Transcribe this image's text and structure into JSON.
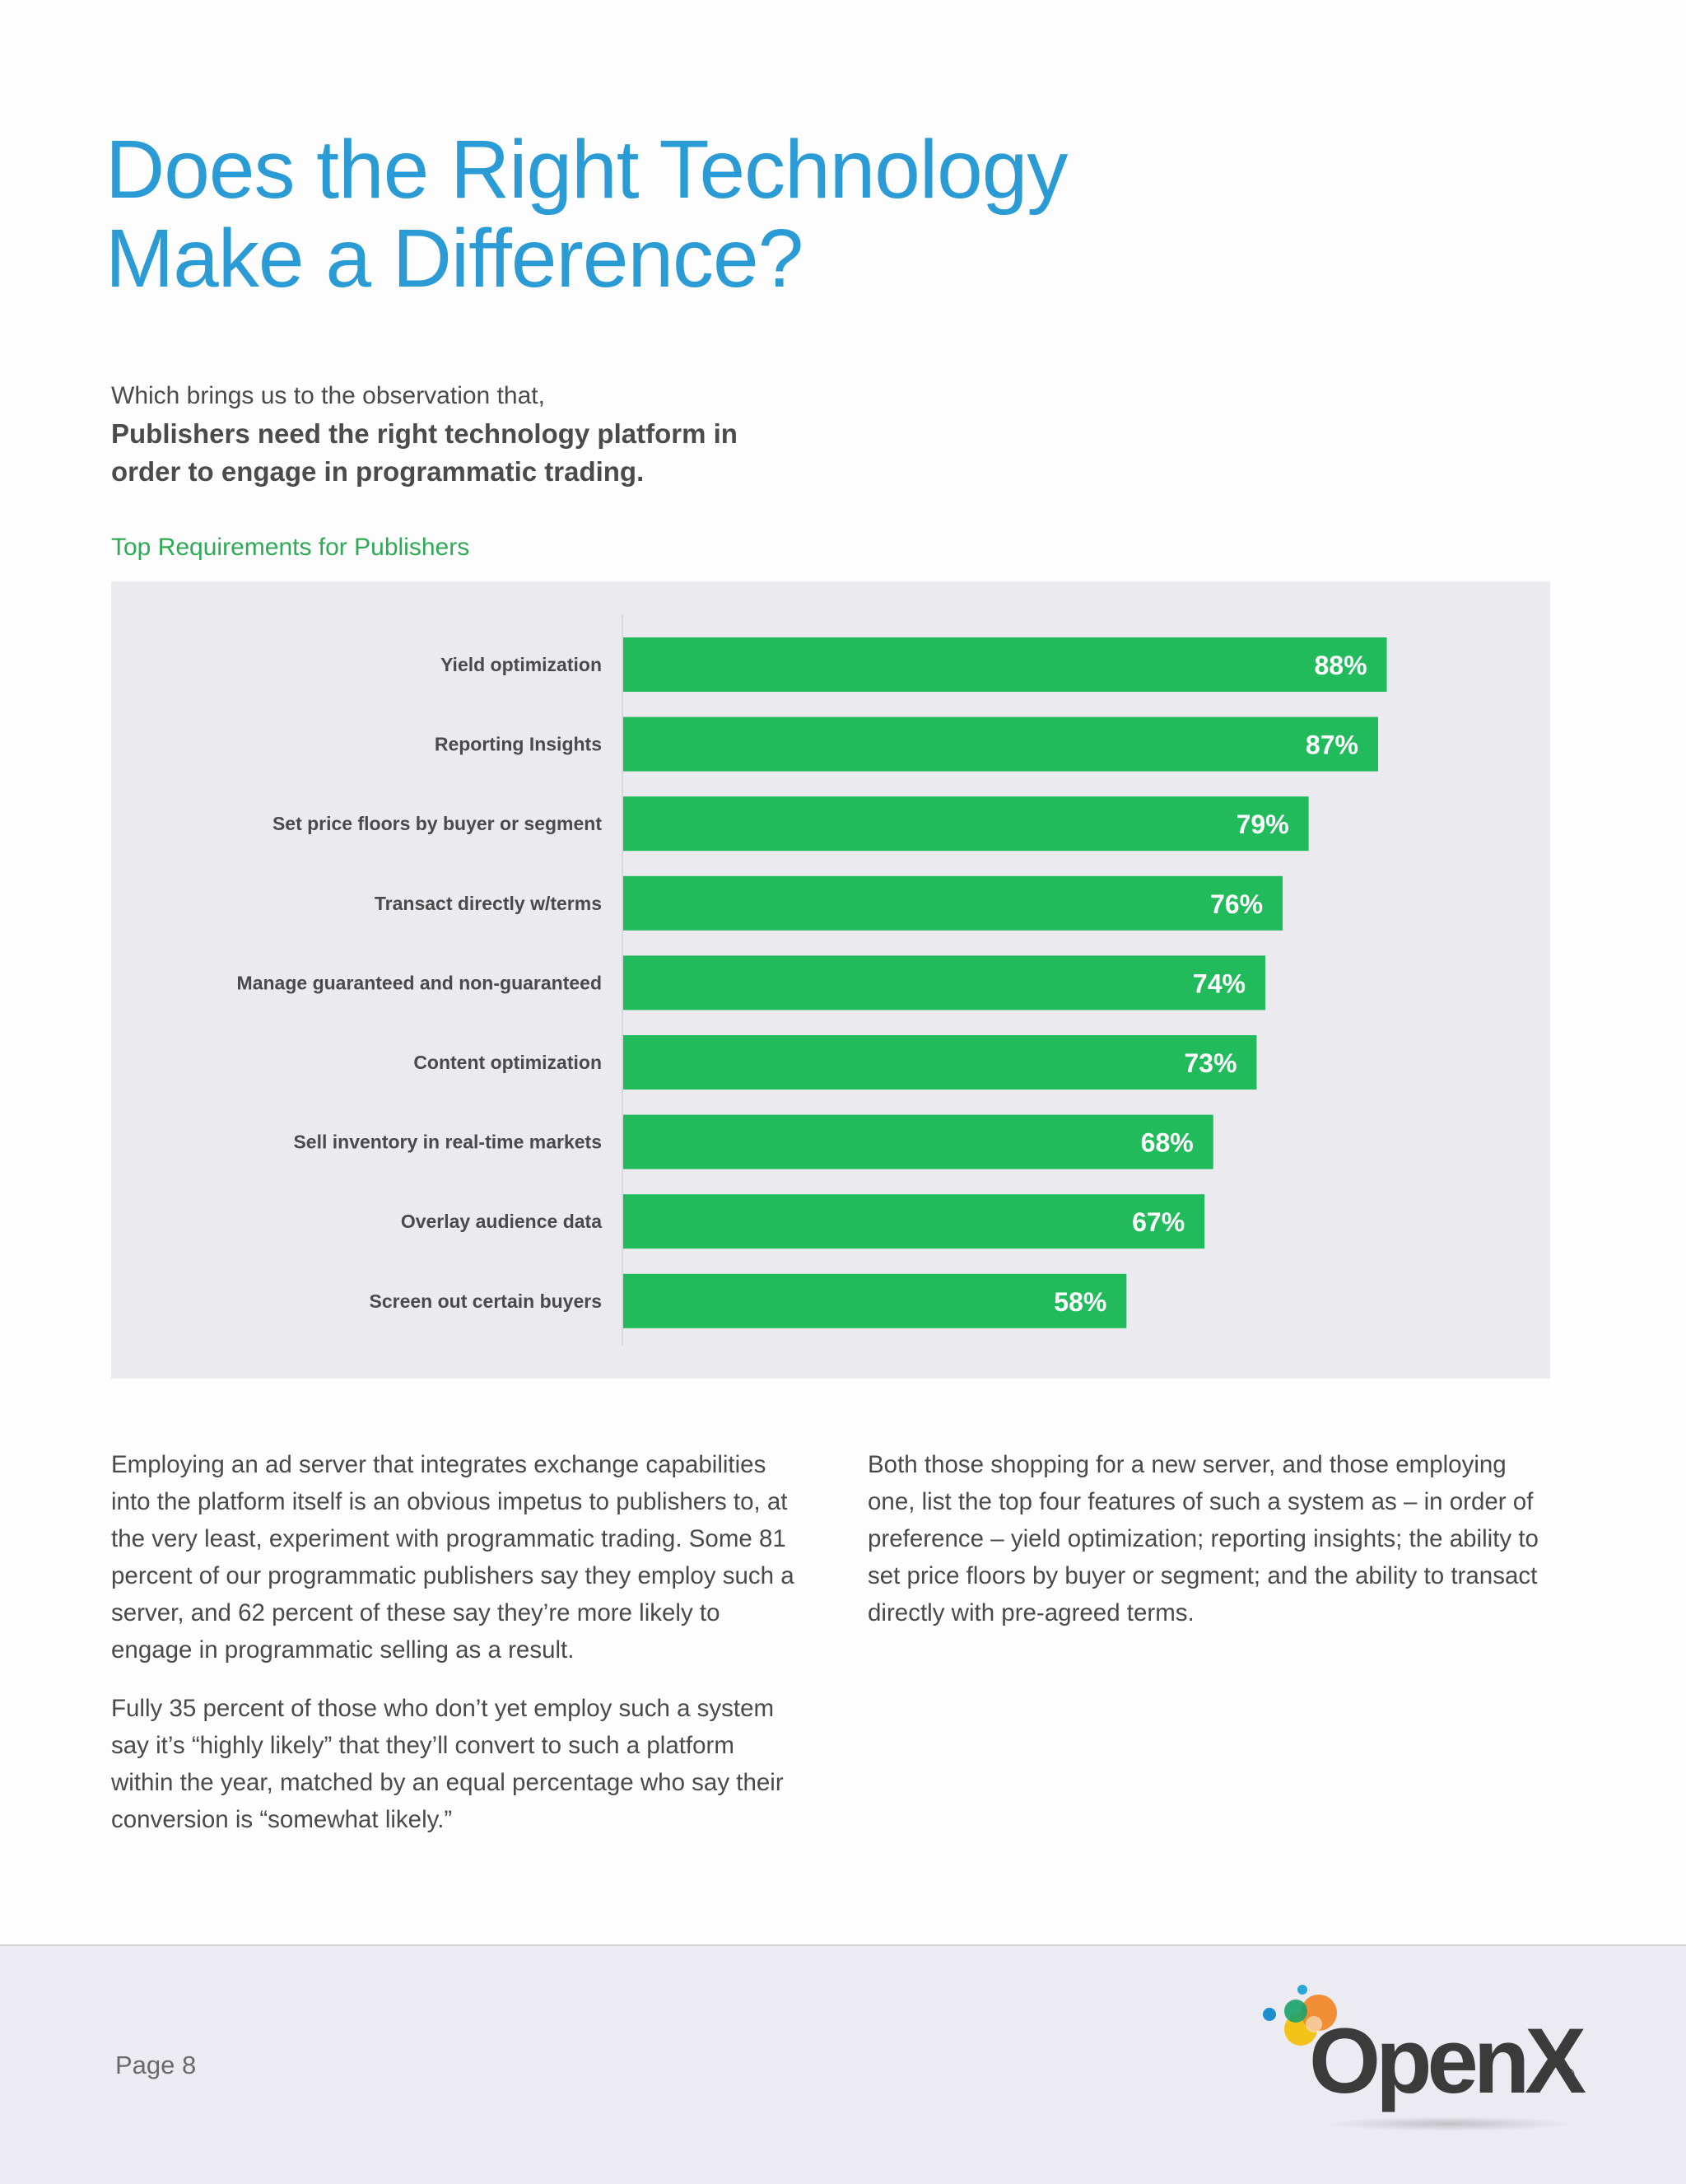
{
  "title": {
    "line1": "Does the Right Technology",
    "line2": "Make a Difference?"
  },
  "intro": {
    "lead": "Which brings us to the observation that,",
    "bold_line1": "Publishers need the right technology platform in",
    "bold_line2": "order to engage in programmatic trading."
  },
  "chart_caption": "Top Requirements for Publishers",
  "chart_data": {
    "type": "bar",
    "orientation": "horizontal",
    "title": "Top Requirements for Publishers",
    "categories": [
      "Yield optimization",
      "Reporting Insights",
      "Set price floors by buyer or segment",
      "Transact directly w/terms",
      "Manage guaranteed and non-guaranteed",
      "Content optimization",
      "Sell inventory in real-time markets",
      "Overlay audience data",
      "Screen out certain buyers"
    ],
    "values": [
      88,
      87,
      79,
      76,
      74,
      73,
      68,
      67,
      58
    ],
    "value_labels": [
      "88%",
      "87%",
      "79%",
      "76%",
      "74%",
      "73%",
      "68%",
      "67%",
      "58%"
    ],
    "xlim": [
      0,
      100
    ],
    "grid": false,
    "bar_color": "#21bb5c",
    "background_color": "#ebebef"
  },
  "body": {
    "left_p1": "Employing an ad server that integrates exchange capabilities into the platform itself is an obvious impetus to publishers to, at the very least, experiment with programmatic trading. Some 81 percent of our programmatic publishers say they employ such a server, and 62 percent of these say they’re more likely to engage in programmatic selling as a result.",
    "left_p2": "Fully 35 percent of those who don’t yet employ such a system say it’s “highly likely” that they’ll convert to such a platform within the year, matched by an equal percentage who say their conversion is “somewhat likely.”",
    "right_p1": "Both those shopping for a new server, and those employing one, list the top four features of such a system as – in order of preference – yield optimization; reporting insights; the ability to set price floors by buyer or segment; and the ability to transact directly with pre-agreed terms."
  },
  "footer": {
    "page": "Page 8",
    "logo_text": "OpenX",
    "logo_reg": "®"
  },
  "colors": {
    "title": "#2a9bd4",
    "caption": "#2eaa55",
    "bar": "#21bb5c"
  }
}
